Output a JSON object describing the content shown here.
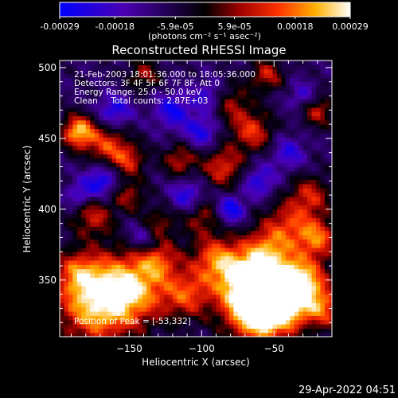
{
  "colorbar": {
    "tick_labels": [
      "-0.00029",
      "-0.00018",
      "-5.9e-05",
      "5.9e-05",
      "0.00018",
      "0.00029"
    ],
    "tick_values": [
      -0.00029,
      -0.00018,
      -5.9e-05,
      5.9e-05,
      0.00018,
      0.00029
    ],
    "range": [
      -0.00029,
      0.00029
    ],
    "units": "(photons cm⁻² s⁻¹ asec⁻²)",
    "colors": [
      "#0000ff",
      "#4b00b4",
      "#000000",
      "#a00000",
      "#ff3000",
      "#ffb000",
      "#ffffff"
    ]
  },
  "chart_data": {
    "type": "heatmap",
    "title": "Reconstructed RHESSI Image",
    "xlabel": "Heliocentric X (arcsec)",
    "ylabel": "Heliocentric Y (arcsec)",
    "xlim": [
      -198,
      -10
    ],
    "ylim": [
      310,
      505
    ],
    "x_ticks": [
      -150,
      -100,
      -50
    ],
    "y_ticks": [
      350,
      400,
      450,
      500
    ],
    "annotations": [
      "21-Feb-2003 18:01:36.000 to 18:05:36.000",
      "Detectors: 3F 4F 5F 6F 7F 8F, Att 0",
      "Energy Range: 25.0 - 50.0 keV",
      "Clean     Total counts: 2.87E+03"
    ],
    "peak_label": "Position of Peak = [-53,332]",
    "peak": [
      -53,
      332
    ],
    "value_range": [
      -0.00029,
      0.00029
    ]
  },
  "footer": {
    "timestamp": "29-Apr-2022 04:51"
  }
}
